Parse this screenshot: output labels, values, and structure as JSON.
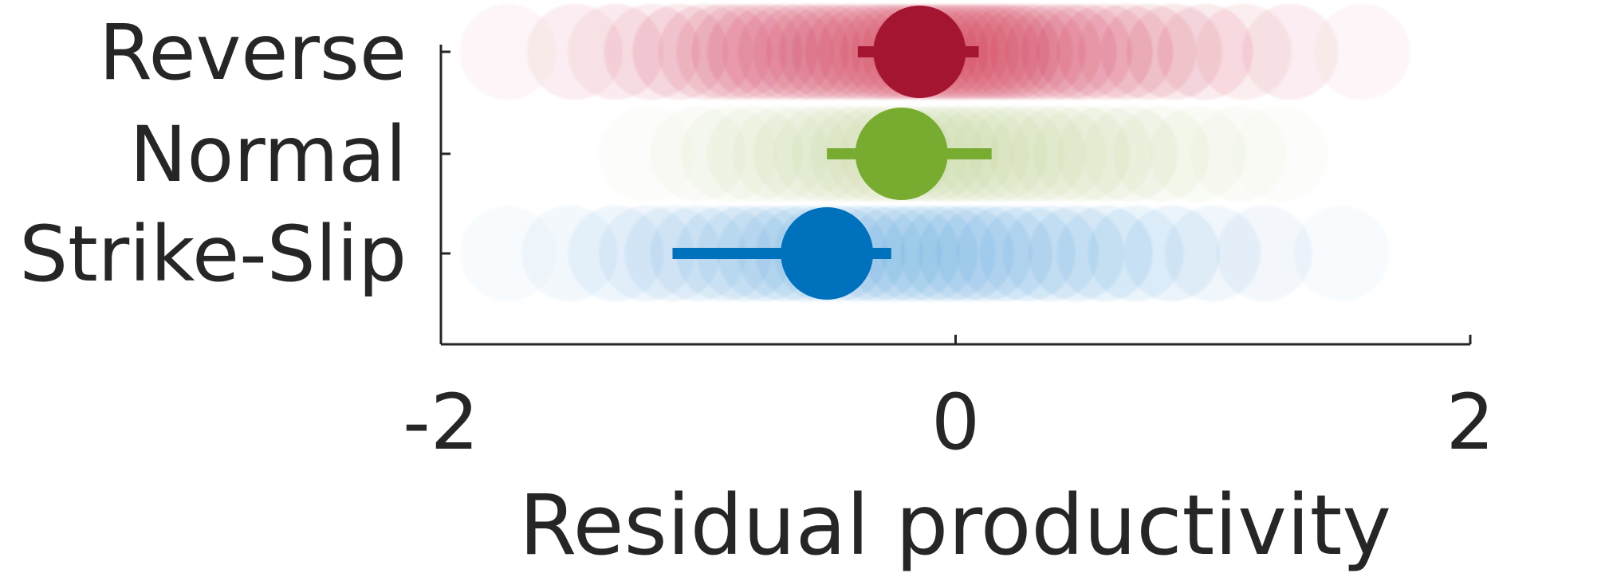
{
  "chart_data": {
    "type": "scatter",
    "xlabel": "Residual productivity",
    "ylabel": "",
    "xlim": [
      -2,
      2
    ],
    "xticks": [
      -2,
      0,
      2
    ],
    "xtick_labels": [
      "-2",
      "0",
      "2"
    ],
    "categories": [
      "Reverse",
      "Normal",
      "Strike-Slip"
    ],
    "grid": false,
    "legend": "none",
    "series": [
      {
        "category": "Reverse",
        "color": "#a31530",
        "cloud_color": "#cc2a4a",
        "mean": -0.14,
        "ci": [
          -0.38,
          0.09
        ],
        "samples": [
          -1.74,
          -1.48,
          -1.32,
          -1.18,
          -1.07,
          -0.97,
          -0.9,
          -0.84,
          -0.78,
          -0.72,
          -0.66,
          -0.6,
          -0.55,
          -0.5,
          -0.45,
          -0.4,
          -0.35,
          -0.3,
          -0.26,
          -0.22,
          -0.18,
          -0.14,
          -0.1,
          -0.06,
          -0.02,
          0.02,
          0.06,
          0.1,
          0.14,
          0.18,
          0.22,
          0.27,
          0.32,
          0.38,
          0.44,
          0.5,
          0.58,
          0.66,
          0.75,
          0.85,
          0.97,
          1.12,
          1.3,
          1.58
        ]
      },
      {
        "category": "Normal",
        "color": "#77ac30",
        "cloud_color": "#b8cc8a",
        "mean": -0.21,
        "ci": [
          -0.5,
          0.14
        ],
        "samples": [
          -1.2,
          -1.0,
          -0.88,
          -0.78,
          -0.68,
          -0.6,
          -0.52,
          -0.45,
          -0.38,
          -0.32,
          -0.26,
          -0.2,
          -0.14,
          -0.08,
          -0.02,
          0.04,
          0.1,
          0.17,
          0.24,
          0.32,
          0.4,
          0.49,
          0.58,
          0.68,
          0.8,
          0.94,
          1.1,
          1.26
        ]
      },
      {
        "category": "Strike-Slip",
        "color": "#0072bd",
        "cloud_color": "#4a9ad8",
        "mean": -0.5,
        "ci": [
          -1.1,
          -0.25
        ],
        "samples": [
          -1.74,
          -1.5,
          -1.32,
          -1.2,
          -1.1,
          -1.0,
          -0.9,
          -0.82,
          -0.74,
          -0.66,
          -0.59,
          -0.52,
          -0.45,
          -0.38,
          -0.31,
          -0.24,
          -0.17,
          -0.1,
          -0.03,
          0.04,
          0.11,
          0.19,
          0.28,
          0.37,
          0.47,
          0.58,
          0.7,
          0.84,
          1.0,
          1.2,
          1.5
        ]
      }
    ]
  }
}
